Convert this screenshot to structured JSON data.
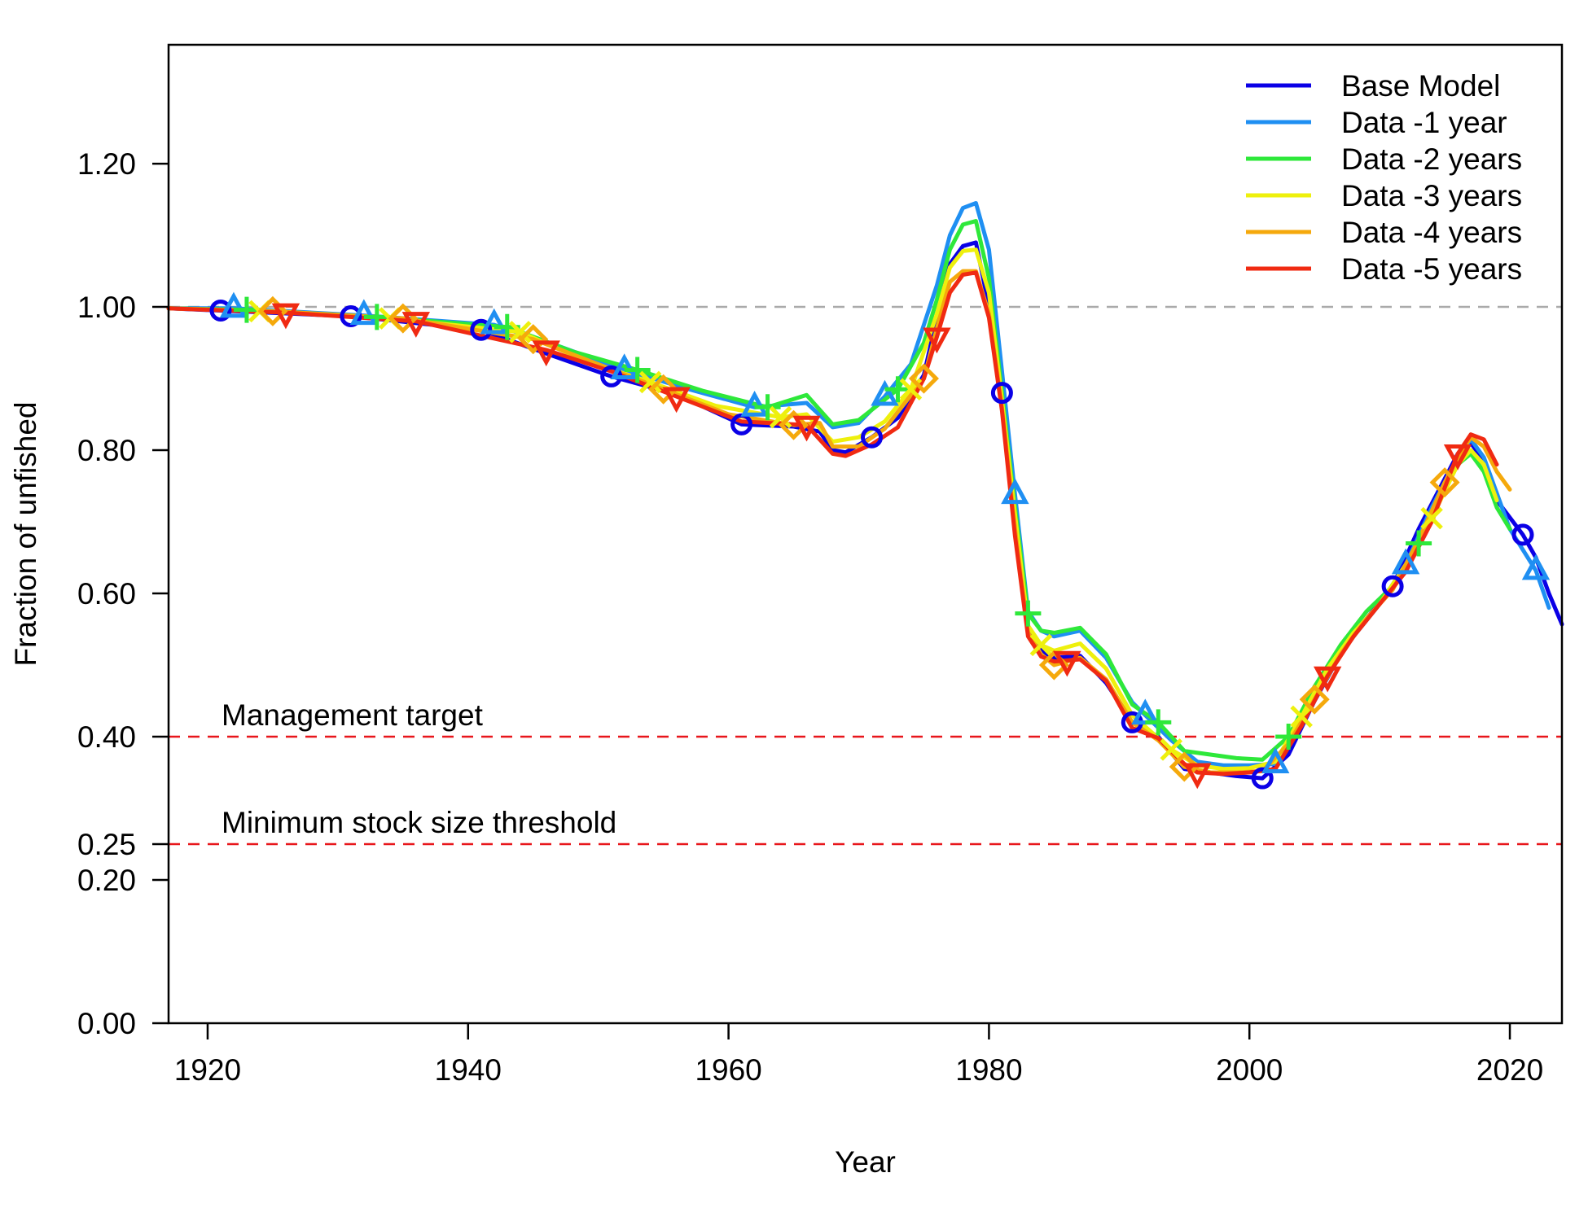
{
  "chart_data": {
    "type": "line",
    "xlabel": "Year",
    "ylabel": "Fraction of unfished",
    "xlim": [
      1917,
      2024
    ],
    "ylim": [
      0,
      1.2
    ],
    "x_ticks": [
      1920,
      1940,
      1960,
      1980,
      2000,
      2020
    ],
    "y_ticks": [
      0.0,
      0.2,
      0.25,
      0.4,
      0.6,
      0.8,
      1.0,
      1.2
    ],
    "y_tick_labels": [
      "0.00",
      "0.20",
      "0.25",
      "0.40",
      "0.60",
      "0.80",
      "1.00",
      "1.20"
    ],
    "x_tick_labels": [
      "1920",
      "1940",
      "1960",
      "1980",
      "2000",
      "2020"
    ],
    "legend_position": "top-right",
    "reference_lines": [
      {
        "y": 1.0,
        "color": "#aaaaaa",
        "label": ""
      },
      {
        "y": 0.4,
        "color": "#e8161b",
        "label": "Management target"
      },
      {
        "y": 0.25,
        "color": "#e8161b",
        "label": "Minimum stock size threshold"
      }
    ],
    "series": [
      {
        "name": "Base Model",
        "color": "#0b00e6",
        "marker": "circle",
        "points": [
          [
            1917,
            0.998
          ],
          [
            1921,
            0.995
          ],
          [
            1931,
            0.987
          ],
          [
            1941,
            0.968
          ],
          [
            1946,
            0.935
          ],
          [
            1951,
            0.903
          ],
          [
            1956,
            0.878
          ],
          [
            1961,
            0.836
          ],
          [
            1965,
            0.833
          ],
          [
            1967,
            0.826
          ],
          [
            1968,
            0.8
          ],
          [
            1969,
            0.797
          ],
          [
            1971,
            0.818
          ],
          [
            1973,
            0.845
          ],
          [
            1975,
            0.905
          ],
          [
            1976,
            0.985
          ],
          [
            1977,
            1.06
          ],
          [
            1978,
            1.085
          ],
          [
            1979,
            1.09
          ],
          [
            1980,
            1.0
          ],
          [
            1981,
            0.88
          ],
          [
            1982,
            0.7
          ],
          [
            1983,
            0.555
          ],
          [
            1984,
            0.52
          ],
          [
            1985,
            0.51
          ],
          [
            1987,
            0.513
          ],
          [
            1989,
            0.475
          ],
          [
            1991,
            0.42
          ],
          [
            1993,
            0.4
          ],
          [
            1995,
            0.355
          ],
          [
            1997,
            0.35
          ],
          [
            1999,
            0.345
          ],
          [
            2001,
            0.342
          ],
          [
            2003,
            0.375
          ],
          [
            2005,
            0.45
          ],
          [
            2007,
            0.515
          ],
          [
            2009,
            0.565
          ],
          [
            2011,
            0.61
          ],
          [
            2013,
            0.69
          ],
          [
            2015,
            0.76
          ],
          [
            2016,
            0.795
          ],
          [
            2017,
            0.81
          ],
          [
            2018,
            0.785
          ],
          [
            2019,
            0.73
          ],
          [
            2021,
            0.682
          ],
          [
            2022,
            0.65
          ],
          [
            2023,
            0.6
          ],
          [
            2024,
            0.557
          ]
        ]
      },
      {
        "name": "Data -1 year",
        "color": "#1f8ff2",
        "marker": "triangle-up",
        "points": [
          [
            1917,
            0.998
          ],
          [
            1922,
            0.998
          ],
          [
            1932,
            0.988
          ],
          [
            1942,
            0.975
          ],
          [
            1947,
            0.945
          ],
          [
            1952,
            0.912
          ],
          [
            1957,
            0.885
          ],
          [
            1962,
            0.86
          ],
          [
            1966,
            0.866
          ],
          [
            1968,
            0.832
          ],
          [
            1970,
            0.838
          ],
          [
            1972,
            0.875
          ],
          [
            1974,
            0.92
          ],
          [
            1976,
            1.03
          ],
          [
            1977,
            1.1
          ],
          [
            1978,
            1.138
          ],
          [
            1979,
            1.145
          ],
          [
            1980,
            1.08
          ],
          [
            1981,
            0.91
          ],
          [
            1982,
            0.738
          ],
          [
            1983,
            0.575
          ],
          [
            1984,
            0.548
          ],
          [
            1985,
            0.54
          ],
          [
            1987,
            0.548
          ],
          [
            1989,
            0.51
          ],
          [
            1991,
            0.448
          ],
          [
            1992,
            0.43
          ],
          [
            1994,
            0.395
          ],
          [
            1996,
            0.365
          ],
          [
            1998,
            0.36
          ],
          [
            2000,
            0.36
          ],
          [
            2002,
            0.362
          ],
          [
            2004,
            0.42
          ],
          [
            2006,
            0.49
          ],
          [
            2008,
            0.54
          ],
          [
            2010,
            0.585
          ],
          [
            2012,
            0.64
          ],
          [
            2014,
            0.72
          ],
          [
            2016,
            0.79
          ],
          [
            2017,
            0.815
          ],
          [
            2018,
            0.79
          ],
          [
            2019,
            0.74
          ],
          [
            2020,
            0.69
          ],
          [
            2022,
            0.632
          ],
          [
            2023,
            0.58
          ]
        ]
      },
      {
        "name": "Data -2 years",
        "color": "#2ee83a",
        "marker": "plus",
        "points": [
          [
            1917,
            0.998
          ],
          [
            1923,
            0.996
          ],
          [
            1933,
            0.986
          ],
          [
            1943,
            0.972
          ],
          [
            1948,
            0.938
          ],
          [
            1953,
            0.912
          ],
          [
            1958,
            0.883
          ],
          [
            1963,
            0.86
          ],
          [
            1966,
            0.877
          ],
          [
            1968,
            0.836
          ],
          [
            1970,
            0.842
          ],
          [
            1973,
            0.885
          ],
          [
            1975,
            0.95
          ],
          [
            1976,
            1.01
          ],
          [
            1977,
            1.08
          ],
          [
            1978,
            1.115
          ],
          [
            1979,
            1.12
          ],
          [
            1980,
            1.04
          ],
          [
            1981,
            0.88
          ],
          [
            1982,
            0.72
          ],
          [
            1983,
            0.572
          ],
          [
            1984,
            0.548
          ],
          [
            1985,
            0.545
          ],
          [
            1987,
            0.552
          ],
          [
            1989,
            0.515
          ],
          [
            1991,
            0.445
          ],
          [
            1993,
            0.42
          ],
          [
            1995,
            0.38
          ],
          [
            1997,
            0.375
          ],
          [
            1999,
            0.37
          ],
          [
            2001,
            0.368
          ],
          [
            2003,
            0.4
          ],
          [
            2005,
            0.47
          ],
          [
            2007,
            0.528
          ],
          [
            2009,
            0.575
          ],
          [
            2011,
            0.61
          ],
          [
            2013,
            0.67
          ],
          [
            2015,
            0.75
          ],
          [
            2016,
            0.78
          ],
          [
            2017,
            0.795
          ],
          [
            2018,
            0.77
          ],
          [
            2019,
            0.72
          ],
          [
            2020,
            0.69
          ]
        ]
      },
      {
        "name": "Data -3 years",
        "color": "#eef00d",
        "marker": "cross",
        "points": [
          [
            1917,
            0.998
          ],
          [
            1924,
            0.994
          ],
          [
            1934,
            0.984
          ],
          [
            1944,
            0.965
          ],
          [
            1949,
            0.925
          ],
          [
            1954,
            0.895
          ],
          [
            1959,
            0.862
          ],
          [
            1964,
            0.846
          ],
          [
            1966,
            0.85
          ],
          [
            1968,
            0.812
          ],
          [
            1970,
            0.818
          ],
          [
            1972,
            0.84
          ],
          [
            1974,
            0.885
          ],
          [
            1976,
            0.99
          ],
          [
            1977,
            1.055
          ],
          [
            1978,
            1.078
          ],
          [
            1979,
            1.08
          ],
          [
            1980,
            1.02
          ],
          [
            1981,
            0.87
          ],
          [
            1982,
            0.71
          ],
          [
            1983,
            0.555
          ],
          [
            1984,
            0.528
          ],
          [
            1985,
            0.52
          ],
          [
            1987,
            0.53
          ],
          [
            1989,
            0.495
          ],
          [
            1991,
            0.43
          ],
          [
            1994,
            0.382
          ],
          [
            1996,
            0.36
          ],
          [
            1998,
            0.355
          ],
          [
            2000,
            0.356
          ],
          [
            2002,
            0.365
          ],
          [
            2004,
            0.428
          ],
          [
            2006,
            0.495
          ],
          [
            2008,
            0.545
          ],
          [
            2010,
            0.585
          ],
          [
            2012,
            0.64
          ],
          [
            2014,
            0.705
          ],
          [
            2016,
            0.78
          ],
          [
            2017,
            0.8
          ],
          [
            2018,
            0.78
          ],
          [
            2019,
            0.73
          ]
        ]
      },
      {
        "name": "Data -4 years",
        "color": "#f5a90c",
        "marker": "diamond",
        "points": [
          [
            1917,
            0.998
          ],
          [
            1925,
            0.994
          ],
          [
            1935,
            0.984
          ],
          [
            1945,
            0.955
          ],
          [
            1950,
            0.92
          ],
          [
            1955,
            0.885
          ],
          [
            1960,
            0.85
          ],
          [
            1965,
            0.835
          ],
          [
            1967,
            0.838
          ],
          [
            1968,
            0.805
          ],
          [
            1970,
            0.805
          ],
          [
            1972,
            0.83
          ],
          [
            1975,
            0.9
          ],
          [
            1976,
            0.97
          ],
          [
            1977,
            1.035
          ],
          [
            1978,
            1.05
          ],
          [
            1979,
            1.05
          ],
          [
            1980,
            0.99
          ],
          [
            1981,
            0.86
          ],
          [
            1982,
            0.69
          ],
          [
            1983,
            0.545
          ],
          [
            1984,
            0.515
          ],
          [
            1985,
            0.5
          ],
          [
            1987,
            0.51
          ],
          [
            1989,
            0.48
          ],
          [
            1991,
            0.42
          ],
          [
            1993,
            0.395
          ],
          [
            1995,
            0.358
          ],
          [
            1997,
            0.35
          ],
          [
            1999,
            0.35
          ],
          [
            2001,
            0.352
          ],
          [
            2003,
            0.39
          ],
          [
            2005,
            0.452
          ],
          [
            2007,
            0.515
          ],
          [
            2009,
            0.565
          ],
          [
            2011,
            0.605
          ],
          [
            2013,
            0.675
          ],
          [
            2015,
            0.755
          ],
          [
            2016,
            0.79
          ],
          [
            2017,
            0.818
          ],
          [
            2018,
            0.805
          ],
          [
            2019,
            0.77
          ],
          [
            2020,
            0.745
          ]
        ]
      },
      {
        "name": "Data -5 years",
        "color": "#f02a12",
        "marker": "triangle-down",
        "points": [
          [
            1917,
            0.998
          ],
          [
            1926,
            0.992
          ],
          [
            1936,
            0.98
          ],
          [
            1946,
            0.94
          ],
          [
            1951,
            0.91
          ],
          [
            1956,
            0.875
          ],
          [
            1961,
            0.84
          ],
          [
            1966,
            0.835
          ],
          [
            1968,
            0.795
          ],
          [
            1969,
            0.792
          ],
          [
            1971,
            0.808
          ],
          [
            1973,
            0.832
          ],
          [
            1975,
            0.9
          ],
          [
            1976,
            0.958
          ],
          [
            1977,
            1.02
          ],
          [
            1978,
            1.045
          ],
          [
            1979,
            1.048
          ],
          [
            1980,
            0.985
          ],
          [
            1981,
            0.855
          ],
          [
            1982,
            0.68
          ],
          [
            1983,
            0.54
          ],
          [
            1984,
            0.512
          ],
          [
            1985,
            0.505
          ],
          [
            1987,
            0.508
          ],
          [
            1989,
            0.478
          ],
          [
            1991,
            0.412
          ],
          [
            1993,
            0.398
          ],
          [
            1995,
            0.362
          ],
          [
            1996,
            0.35
          ],
          [
            1998,
            0.348
          ],
          [
            2000,
            0.35
          ],
          [
            2002,
            0.355
          ],
          [
            2004,
            0.415
          ],
          [
            2006,
            0.485
          ],
          [
            2008,
            0.54
          ],
          [
            2010,
            0.585
          ],
          [
            2012,
            0.63
          ],
          [
            2014,
            0.7
          ],
          [
            2016,
            0.795
          ],
          [
            2017,
            0.822
          ],
          [
            2018,
            0.815
          ],
          [
            2019,
            0.78
          ]
        ]
      }
    ],
    "markers": [
      {
        "series": 0,
        "x": [
          1921,
          1931,
          1941,
          1951,
          1961,
          1971,
          1981,
          1991,
          2001,
          2011,
          2021
        ]
      },
      {
        "series": 1,
        "x": [
          1922,
          1932,
          1942,
          1952,
          1962,
          1972,
          1982,
          1992,
          2002,
          2012,
          2022
        ]
      },
      {
        "series": 2,
        "x": [
          1923,
          1933,
          1943,
          1953,
          1963,
          1973,
          1983,
          1993,
          2003,
          2013
        ]
      },
      {
        "series": 3,
        "x": [
          1924,
          1934,
          1944,
          1954,
          1964,
          1974,
          1984,
          1994,
          2004,
          2014
        ]
      },
      {
        "series": 4,
        "x": [
          1925,
          1935,
          1945,
          1955,
          1965,
          1975,
          1985,
          1995,
          2005,
          2015
        ]
      },
      {
        "series": 5,
        "x": [
          1926,
          1936,
          1946,
          1956,
          1966,
          1976,
          1986,
          1996,
          2006,
          2016
        ]
      }
    ]
  }
}
